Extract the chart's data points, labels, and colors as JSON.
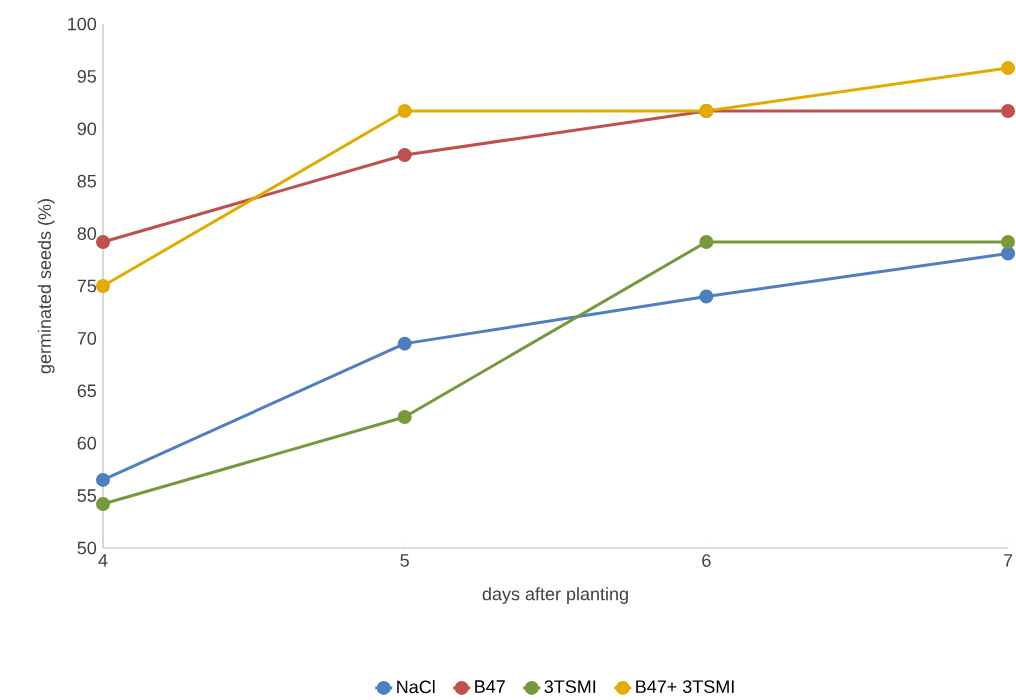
{
  "chart_data": {
    "type": "line",
    "xlabel": "days after planting",
    "ylabel": "germinated seeds (%)",
    "x": [
      4,
      5,
      6,
      7
    ],
    "series": [
      {
        "name": "NaCl",
        "color": "#4e7fc0",
        "values": [
          56.5,
          69.5,
          74,
          78.1
        ]
      },
      {
        "name": "B47",
        "color": "#c0504d",
        "values": [
          79.2,
          87.5,
          91.7,
          91.7
        ]
      },
      {
        "name": "3TSMI",
        "color": "#76993b",
        "values": [
          54.2,
          62.5,
          79.2,
          79.2
        ]
      },
      {
        "name": "B47+ 3TSMI",
        "color": "#e2ab00",
        "values": [
          75,
          91.7,
          91.7,
          95.8
        ]
      }
    ],
    "xlim": [
      4,
      7
    ],
    "xticks": [
      4,
      5,
      6,
      7
    ],
    "ylim": [
      50,
      100
    ],
    "yticks": [
      50,
      55,
      60,
      65,
      70,
      75,
      80,
      85,
      90,
      95,
      100
    ],
    "grid": false,
    "legend": "bottom",
    "marker": "circle",
    "line_style": "solid"
  }
}
